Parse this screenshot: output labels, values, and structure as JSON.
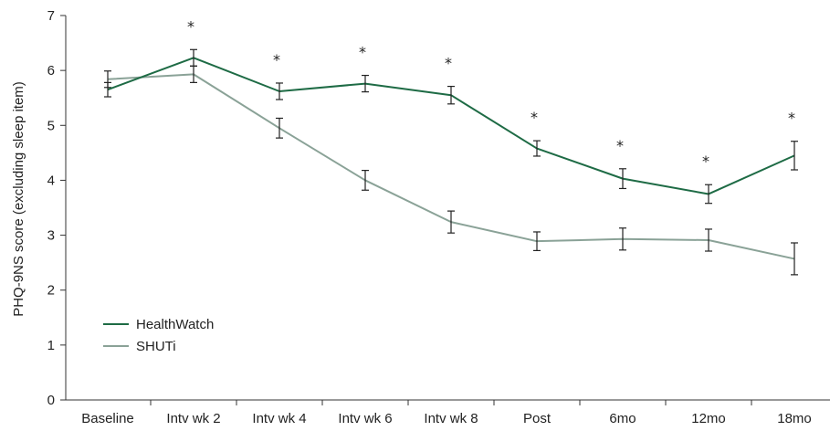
{
  "chart_data": {
    "type": "line",
    "title": "",
    "xlabel": "",
    "ylabel": "PHQ-9NS score (excluding sleep item)",
    "ylim": [
      0,
      7
    ],
    "yticks": [
      "0",
      "1",
      "2",
      "3",
      "4",
      "5",
      "6",
      "7"
    ],
    "categories": [
      "Baseline",
      "Intv wk 2",
      "Intv wk 4",
      "Intv wk 6",
      "Intv wk 8",
      "Post",
      "6mo",
      "12mo",
      "18mo"
    ],
    "series": [
      {
        "name": "HealthWatch",
        "color": "#1e6b45",
        "values": [
          5.65,
          6.23,
          5.62,
          5.76,
          5.55,
          4.58,
          4.03,
          3.75,
          4.45
        ],
        "error": [
          0.13,
          0.15,
          0.15,
          0.15,
          0.16,
          0.14,
          0.18,
          0.17,
          0.26
        ]
      },
      {
        "name": "SHUTi",
        "color": "#8aa297",
        "values": [
          5.84,
          5.93,
          4.95,
          4.0,
          3.24,
          2.89,
          2.93,
          2.91,
          2.57
        ],
        "error": [
          0.15,
          0.15,
          0.18,
          0.18,
          0.2,
          0.17,
          0.2,
          0.2,
          0.29
        ]
      }
    ],
    "significance": [
      "",
      "*",
      "*",
      "*",
      "*",
      "*",
      "*",
      "*",
      "*"
    ],
    "legend": {
      "placement": "lower-left",
      "entries": [
        "HealthWatch",
        "SHUTi"
      ]
    },
    "grid": false
  }
}
